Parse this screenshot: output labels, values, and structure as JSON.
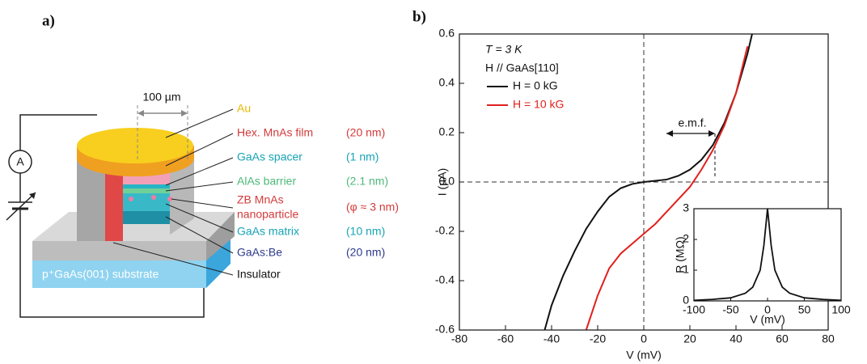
{
  "panel_labels": {
    "a": "a)",
    "b": "b)"
  },
  "diagram": {
    "scale_label": "100 µm",
    "ammeter": "A",
    "layers": [
      {
        "name": "Au",
        "color": "#e6b800"
      },
      {
        "name": "Hex. MnAs film",
        "thickness": "(20 nm)",
        "color": "#d33a3a"
      },
      {
        "name": "GaAs spacer",
        "thickness": "(1 nm)",
        "color": "#16a3b5"
      },
      {
        "name": "AlAs barrier",
        "thickness": "(2.1 nm)",
        "color": "#4db87a"
      },
      {
        "name": [
          "ZB MnAs",
          "nanoparticle"
        ],
        "thickness": "(φ ≈ 3 nm)",
        "color": "#d33a3a"
      },
      {
        "name": "GaAs matrix",
        "thickness": "(10 nm)",
        "color": "#16a3b5"
      },
      {
        "name": "GaAs:Be",
        "thickness": "(20 nm)",
        "color": "#2d3a8c"
      }
    ],
    "insulator": "Insulator",
    "substrate": "p⁺GaAs(001) substrate"
  },
  "chart_data": [
    {
      "type": "line",
      "xlabel": "V (mV)",
      "ylabel": "I (µA)",
      "annotations": {
        "temperature": "T = 3 K",
        "field_direction": "H // GaAs[110]",
        "emf": "e.m.f."
      },
      "x": [
        -43,
        -40,
        -35,
        -30,
        -25,
        -20,
        -15,
        -10,
        -5,
        0,
        5,
        10,
        15,
        20,
        25,
        30,
        35,
        40,
        45,
        47
      ],
      "series": [
        {
          "name": "H = 0 kG",
          "color": "#111111",
          "values": [
            -0.6,
            -0.5,
            -0.38,
            -0.28,
            -0.19,
            -0.12,
            -0.06,
            -0.025,
            -0.008,
            0,
            0.005,
            0.01,
            0.025,
            0.05,
            0.09,
            0.15,
            0.24,
            0.36,
            0.52,
            0.6
          ]
        },
        {
          "name": "H = 10 kG",
          "color": "#e0201e",
          "values": [
            null,
            null,
            null,
            null,
            -0.6,
            -0.46,
            -0.35,
            -0.29,
            -0.25,
            -0.21,
            -0.17,
            -0.12,
            -0.07,
            -0.02,
            0.05,
            0.13,
            0.23,
            0.36,
            0.55,
            null
          ]
        }
      ],
      "xlim": [
        -80,
        80
      ],
      "xticks": [
        -80,
        -60,
        -40,
        -20,
        0,
        20,
        40,
        60,
        80
      ],
      "ylim": [
        -0.6,
        0.6
      ],
      "yticks": [
        -0.6,
        -0.4,
        -0.2,
        {
          "value": 0,
          "label": "0.0"
        },
        0.2,
        0.4,
        0.6
      ],
      "legend": "upper left"
    },
    {
      "type": "line",
      "xlabel": "V (mV)",
      "ylabel": "R (MΩ)",
      "x": [
        -100,
        -75,
        -50,
        -30,
        -20,
        -10,
        -5,
        0,
        5,
        10,
        20,
        30,
        50,
        75,
        100
      ],
      "series": [
        {
          "color": "#111111",
          "values": [
            0.02,
            0.05,
            0.1,
            0.25,
            0.45,
            1.0,
            1.8,
            3.0,
            1.8,
            1.0,
            0.45,
            0.25,
            0.1,
            0.05,
            0.02
          ]
        }
      ],
      "xlim": [
        -100,
        100
      ],
      "xticks": [
        -100,
        -50,
        0,
        50,
        100
      ],
      "ylim": [
        0,
        3
      ],
      "yticks": [
        0,
        1,
        2,
        3
      ]
    }
  ]
}
